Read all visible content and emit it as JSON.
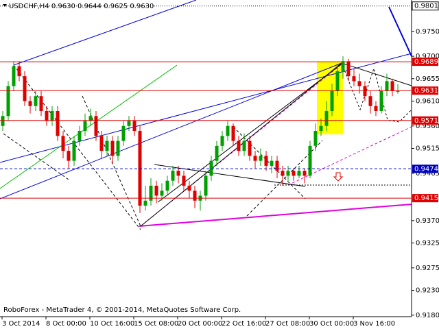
{
  "chart_data": {
    "type": "candlestick",
    "title": "USDCHF,H4 0.9630 0.9644 0.9625 0.9630",
    "footer": "RoboForex - MetaTrader 4, © 2001-2014, MetaQuotes Software Corp.",
    "categories": [
      "3 Oct 2014",
      null,
      null,
      null,
      null,
      null,
      null,
      null,
      "8 Oct 00:00",
      null,
      null,
      null,
      null,
      null,
      null,
      null,
      "10 Oct 16:00",
      null,
      null,
      null,
      null,
      null,
      null,
      null,
      "15 Oct 08:00",
      null,
      null,
      null,
      null,
      null,
      null,
      null,
      "20 Oct 00:00",
      null,
      null,
      null,
      null,
      null,
      null,
      null,
      "22 Oct 16:00",
      null,
      null,
      null,
      null,
      null,
      null,
      null,
      "27 Oct 08:00",
      null,
      null,
      null,
      null,
      null,
      null,
      null,
      "30 Oct 00:00",
      null,
      null,
      null,
      null,
      null,
      null,
      null,
      "3 Nov 16:00",
      null,
      null,
      null,
      null,
      null,
      null,
      null,
      null
    ],
    "open": [
      0.956,
      0.958,
      0.964,
      0.968,
      0.966,
      0.961,
      0.96,
      0.962,
      0.959,
      0.957,
      0.959,
      0.954,
      0.951,
      0.949,
      0.953,
      0.955,
      0.957,
      0.958,
      0.954,
      0.951,
      0.953,
      0.95,
      0.953,
      0.956,
      0.957,
      0.955,
      0.94,
      0.941,
      0.944,
      0.942,
      0.943,
      0.945,
      0.947,
      0.946,
      0.944,
      0.943,
      0.941,
      0.942,
      0.946,
      0.949,
      0.952,
      0.954,
      0.956,
      0.953,
      0.951,
      0.953,
      0.95,
      0.949,
      0.95,
      0.948,
      0.949,
      0.947,
      0.946,
      0.947,
      0.946,
      0.947,
      0.946,
      0.952,
      0.955,
      0.956,
      0.959,
      0.963,
      0.967,
      0.969,
      0.966,
      0.965,
      0.964,
      0.962,
      0.96,
      0.959,
      0.963,
      0.965,
      0.963
    ],
    "high": [
      0.959,
      0.965,
      0.969,
      0.969,
      0.967,
      0.962,
      0.963,
      0.963,
      0.96,
      0.96,
      0.96,
      0.955,
      0.952,
      0.954,
      0.956,
      0.9585,
      0.9595,
      0.959,
      0.955,
      0.954,
      0.954,
      0.954,
      0.957,
      0.958,
      0.958,
      0.956,
      0.944,
      0.9455,
      0.945,
      0.9445,
      0.946,
      0.948,
      0.948,
      0.947,
      0.945,
      0.944,
      0.943,
      0.947,
      0.95,
      0.953,
      0.955,
      0.957,
      0.9565,
      0.954,
      0.9545,
      0.954,
      0.951,
      0.9515,
      0.951,
      0.95,
      0.95,
      0.948,
      0.948,
      0.9475,
      0.948,
      0.9475,
      0.953,
      0.9565,
      0.9575,
      0.961,
      0.9645,
      0.9685,
      0.97,
      0.9695,
      0.9675,
      0.9665,
      0.965,
      0.963,
      0.961,
      0.964,
      0.9665,
      0.9655,
      0.9644
    ],
    "low": [
      0.955,
      0.957,
      0.963,
      0.965,
      0.96,
      0.9585,
      0.959,
      0.958,
      0.956,
      0.956,
      0.953,
      0.9495,
      0.9475,
      0.948,
      0.952,
      0.954,
      0.956,
      0.953,
      0.9495,
      0.95,
      0.9485,
      0.949,
      0.952,
      0.955,
      0.954,
      0.9385,
      0.939,
      0.94,
      0.9405,
      0.941,
      0.942,
      0.944,
      0.9445,
      0.943,
      0.9415,
      0.9395,
      0.939,
      0.941,
      0.945,
      0.948,
      0.951,
      0.953,
      0.952,
      0.95,
      0.95,
      0.949,
      0.9475,
      0.948,
      0.947,
      0.9465,
      0.9455,
      0.944,
      0.945,
      0.945,
      0.9455,
      0.9445,
      0.9455,
      0.951,
      0.954,
      0.955,
      0.958,
      0.962,
      0.9655,
      0.965,
      0.964,
      0.9625,
      0.961,
      0.9585,
      0.958,
      0.9585,
      0.962,
      0.962,
      0.9625
    ],
    "close": [
      0.958,
      0.964,
      0.968,
      0.966,
      0.961,
      0.96,
      0.962,
      0.959,
      0.957,
      0.959,
      0.954,
      0.951,
      0.949,
      0.953,
      0.955,
      0.957,
      0.958,
      0.954,
      0.951,
      0.953,
      0.95,
      0.953,
      0.956,
      0.957,
      0.955,
      0.94,
      0.941,
      0.944,
      0.942,
      0.943,
      0.945,
      0.947,
      0.946,
      0.944,
      0.943,
      0.941,
      0.942,
      0.946,
      0.949,
      0.952,
      0.954,
      0.956,
      0.953,
      0.951,
      0.953,
      0.95,
      0.949,
      0.95,
      0.948,
      0.949,
      0.947,
      0.946,
      0.947,
      0.946,
      0.947,
      0.946,
      0.952,
      0.955,
      0.956,
      0.959,
      0.963,
      0.967,
      0.969,
      0.966,
      0.965,
      0.964,
      0.962,
      0.96,
      0.959,
      0.963,
      0.965,
      0.963,
      0.963
    ],
    "up_color": "#00a000",
    "down_color": "#e00000",
    "ylim": [
      0.9177,
      0.9813
    ],
    "yticks": [
      {
        "value": 0.975,
        "label": "0.9750"
      },
      {
        "value": 0.97,
        "label": "0.9700"
      },
      0.9655,
      {
        "value": 0.961,
        "label": "0.9610"
      },
      {
        "value": 0.956,
        "label": "0.9560"
      },
      0.9515,
      0.9465,
      {
        "value": 0.937,
        "label": "0.9370"
      },
      0.9325,
      0.9275,
      {
        "value": 0.923,
        "label": "0.9230"
      },
      {
        "value": 0.918,
        "label": "0.9180"
      }
    ],
    "levels": [
      {
        "value": 0.9801,
        "color": "#000000",
        "style": "dotted"
      },
      {
        "value": 0.9689,
        "color": "#e00000",
        "style": "solid"
      },
      {
        "value": 0.9631,
        "color": "#e00000",
        "style": "solid"
      },
      {
        "value": 0.9571,
        "color": "#e00000",
        "style": "solid"
      },
      {
        "value": 0.9474,
        "color": "#0000c0",
        "style": "dashed"
      },
      {
        "value": 0.9415,
        "color": "#e00000",
        "style": "solid"
      }
    ]
  }
}
